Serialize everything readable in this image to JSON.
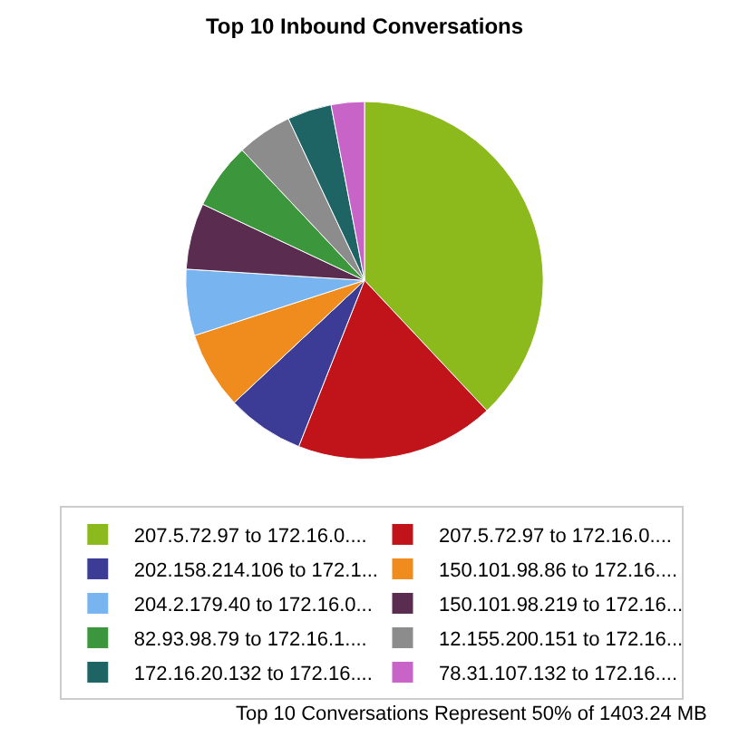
{
  "chart_data": {
    "type": "pie",
    "title": "Top 10 Inbound Conversations",
    "categories": [
      "207.5.72.97 to 172.16.0....",
      "207.5.72.97 to 172.16.0....",
      "202.158.214.106 to 172.1...",
      "150.101.98.86 to 172.16....",
      "204.2.179.40 to 172.16.0...",
      "150.101.98.219 to 172.16...",
      "82.93.98.79 to 172.16.1....",
      "12.155.200.151 to 172.16...",
      "172.16.20.132 to 172.16....",
      "78.31.107.132 to 172.16...."
    ],
    "values": [
      38,
      18,
      7,
      7,
      6,
      6,
      6,
      5,
      4,
      3
    ],
    "colors": [
      "#8cb91c",
      "#c0141a",
      "#3c3c96",
      "#f08c1e",
      "#78b4f0",
      "#5a2d50",
      "#3c963c",
      "#8c8c8c",
      "#1e6464",
      "#c864c8"
    ],
    "legend": "bottom",
    "annotations": [
      "Top 10 Conversations Represent 50% of 1403.24 MB"
    ]
  }
}
